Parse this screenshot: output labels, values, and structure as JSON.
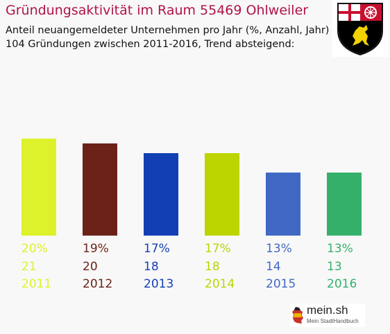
{
  "header": {
    "title": "Gründungsaktivität im Raum 55469 Ohlweiler",
    "subtitle_line1": "Anteil neuangemeldeter Unternehmen pro Jahr (%, Anzahl, Jahr)",
    "subtitle_line2": "104 Gründungen zwischen 2011-2016, Trend absteigend:"
  },
  "logo": {
    "name": "mein.sh",
    "tagline": "Mein StadtHandbuch"
  },
  "colors": {
    "title": "#b0124a",
    "background": "#f8f8f8"
  },
  "icons": {
    "crest": "rhineland-palatinate-coat-of-arms-icon",
    "logo_map": "germany-map-icon"
  },
  "chart_data": {
    "type": "bar",
    "categories": [
      "2011",
      "2012",
      "2013",
      "2014",
      "2015",
      "2016"
    ],
    "values": [
      20,
      19,
      17,
      17,
      13,
      13
    ],
    "percent_labels": [
      "20%",
      "19%",
      "17%",
      "17%",
      "13%",
      "13%"
    ],
    "counts": [
      21,
      20,
      18,
      18,
      14,
      13
    ],
    "colors": [
      "#ddf22a",
      "#6b2219",
      "#1240b4",
      "#bcd400",
      "#4169c4",
      "#35b06a"
    ],
    "grid": false,
    "legend": "none"
  }
}
